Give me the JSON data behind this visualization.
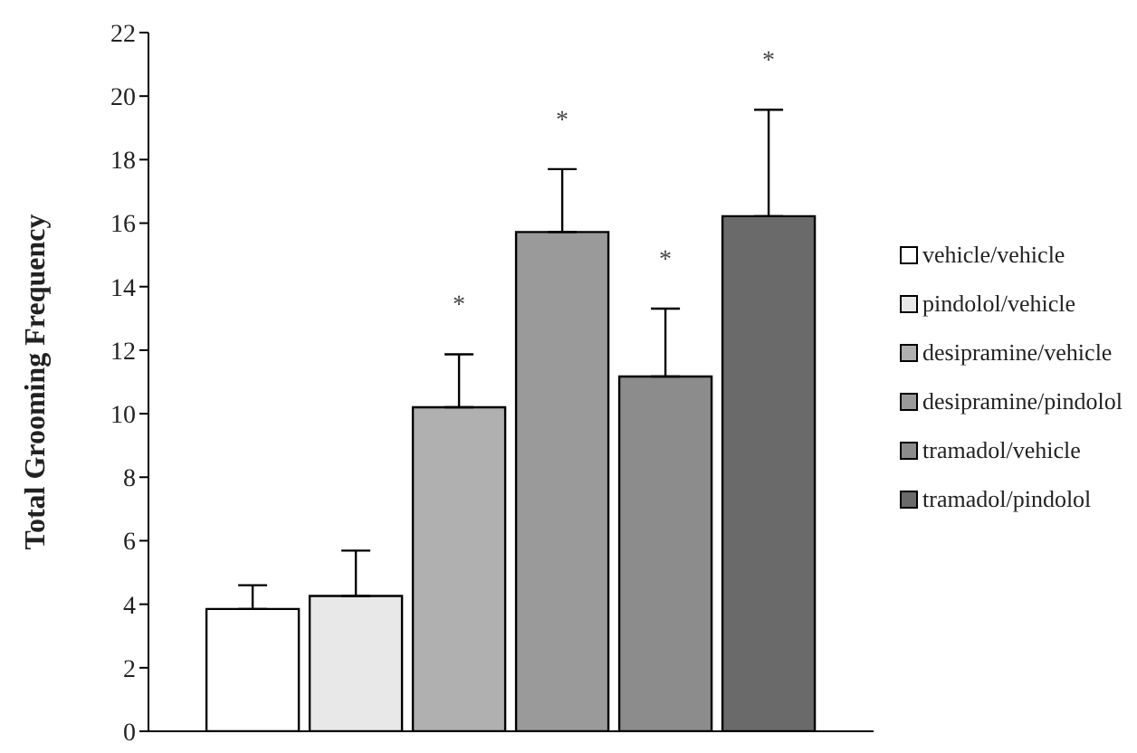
{
  "chart_data": {
    "type": "bar",
    "ylabel": "Total Grooming Frequency",
    "categories": [
      null
    ],
    "ylim": [
      0,
      22
    ],
    "yticks": [
      0,
      2,
      4,
      6,
      8,
      10,
      12,
      14,
      16,
      18,
      20,
      22
    ],
    "grid": false,
    "legend": "right",
    "series": [
      {
        "name": "vehicle/vehicle",
        "color": "#ffffff",
        "values": [
          3.85
        ],
        "errors": [
          [
            3.85,
            4.6
          ]
        ]
      },
      {
        "name": "pindolol/vehicle",
        "color": "#e8e8e8",
        "values": [
          4.26
        ],
        "errors": [
          [
            4.26,
            5.69
          ]
        ]
      },
      {
        "name": "desipramine/vehicle",
        "color": "#b0b0b0",
        "values": [
          10.2
        ],
        "errors": [
          [
            10.2,
            11.87
          ]
        ]
      },
      {
        "name": "desipramine/pindolol",
        "color": "#9a9a9a",
        "values": [
          15.72
        ],
        "errors": [
          [
            15.72,
            17.7
          ]
        ]
      },
      {
        "name": "tramadol/vehicle",
        "color": "#8c8c8c",
        "values": [
          11.17
        ],
        "errors": [
          [
            11.17,
            13.31
          ]
        ]
      },
      {
        "name": "tramadol/pindolol",
        "color": "#6a6a6a",
        "values": [
          16.22
        ],
        "errors": [
          [
            16.22,
            19.57
          ]
        ]
      }
    ],
    "annotations": [
      "*",
      "*",
      "*",
      "*"
    ]
  }
}
